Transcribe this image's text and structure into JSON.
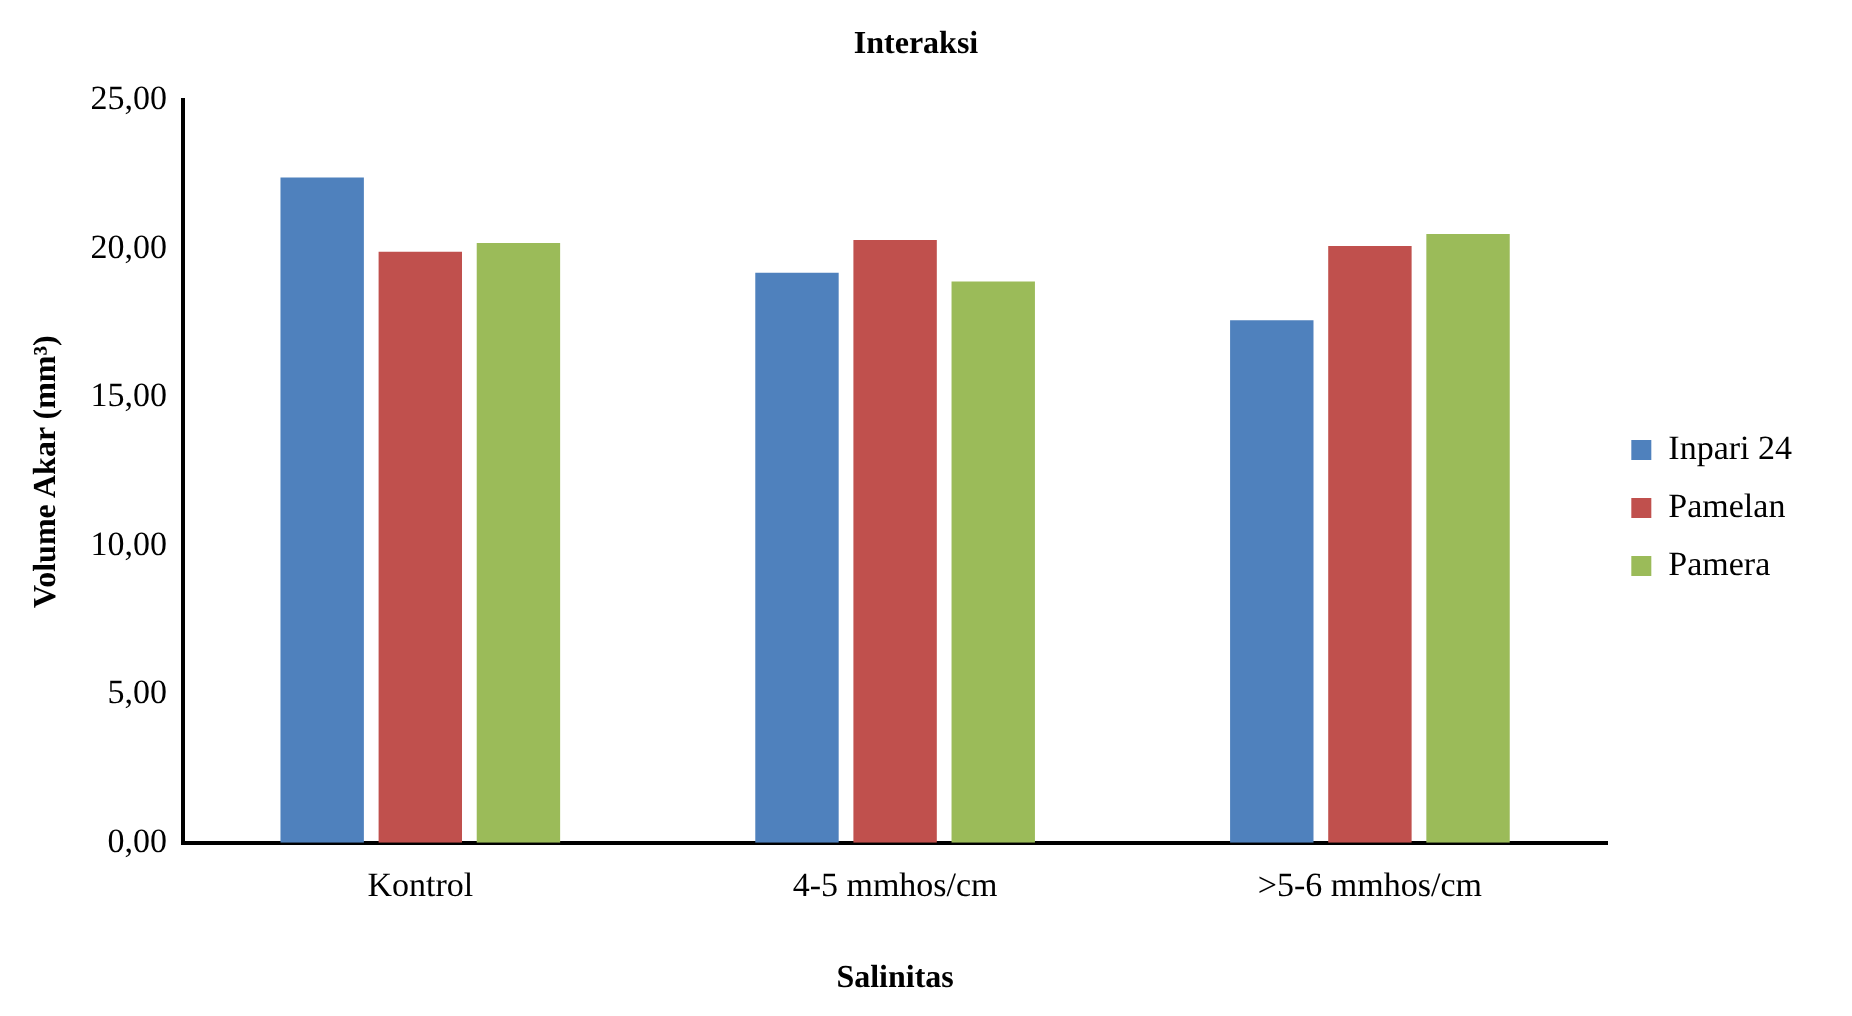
{
  "chart_data": {
    "type": "bar",
    "title": "Interaksi",
    "xlabel": "Salinitas",
    "ylabel": "Volume Akar (mm³)",
    "categories": [
      "Kontrol",
      "4-5 mmhos/cm",
      ">5-6 mmhos/cm"
    ],
    "series": [
      {
        "name": "Inpari 24",
        "color": "#4f81bd",
        "values": [
          22.4,
          19.2,
          17.6
        ]
      },
      {
        "name": "Pamelan",
        "color": "#c0504d",
        "values": [
          19.9,
          20.3,
          20.1
        ]
      },
      {
        "name": "Pamera",
        "color": "#9bbb59",
        "values": [
          20.2,
          18.9,
          20.5
        ]
      }
    ],
    "ylim": [
      0,
      25
    ],
    "yticks": [
      {
        "value": 0,
        "label": "0,00"
      },
      {
        "value": 5,
        "label": "5,00"
      },
      {
        "value": 10,
        "label": "10,00"
      },
      {
        "value": 15,
        "label": "15,00"
      },
      {
        "value": 20,
        "label": "20,00"
      },
      {
        "value": 25,
        "label": "25,00"
      }
    ],
    "grid": false,
    "legend": "right"
  }
}
